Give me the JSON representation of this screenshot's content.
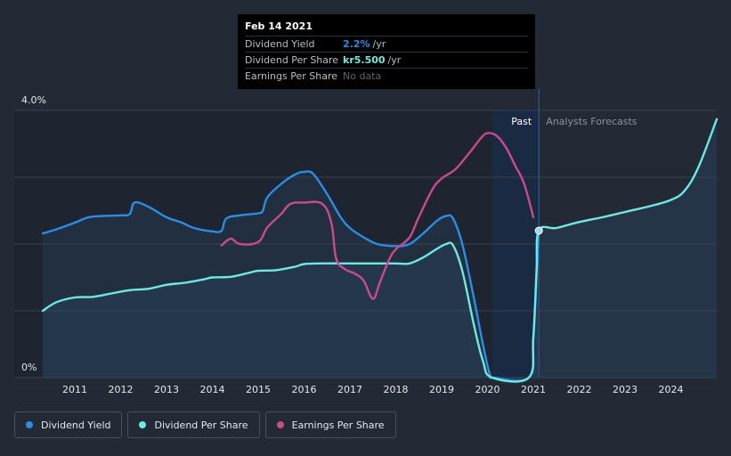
{
  "tooltip": {
    "date": "Feb 14 2021",
    "rows": [
      {
        "label": "Dividend Yield",
        "value": "2.2%",
        "unit": "/yr",
        "color": "#2b8de4"
      },
      {
        "label": "Dividend Per Share",
        "value": "kr5.500",
        "unit": "/yr",
        "color": "#6ee9e0"
      },
      {
        "label": "Earnings Per Share",
        "value": "No data",
        "unit": "",
        "color": "#5d636d"
      }
    ]
  },
  "region_labels": {
    "past": "Past",
    "forecast": "Analysts Forecasts"
  },
  "legend": [
    {
      "label": "Dividend Yield",
      "color": "#2b8de4"
    },
    {
      "label": "Dividend Per Share",
      "color": "#6ee9e0"
    },
    {
      "label": "Earnings Per Share",
      "color": "#c94a8f"
    }
  ],
  "chart_data": {
    "type": "line",
    "title": "",
    "xlabel": "",
    "ylabel": "",
    "x_ticks": [
      "2011",
      "2012",
      "2013",
      "2014",
      "2015",
      "2016",
      "2017",
      "2018",
      "2019",
      "2020",
      "2021",
      "2022",
      "2023",
      "2024"
    ],
    "y_tick_labels": [
      "4.0%",
      "0%"
    ],
    "ylim": [
      0,
      4.0
    ],
    "xlim": [
      2010.3,
      2025.0
    ],
    "grid": true,
    "legend_position": "bottom-left",
    "past_forecast_split": 2021.12,
    "series": [
      {
        "name": "Dividend Yield",
        "color": "#2b8de4",
        "fill": true,
        "points": [
          [
            2010.3,
            2.16
          ],
          [
            2010.6,
            2.22
          ],
          [
            2011.0,
            2.32
          ],
          [
            2011.3,
            2.4
          ],
          [
            2011.6,
            2.42
          ],
          [
            2012.0,
            2.43
          ],
          [
            2012.2,
            2.45
          ],
          [
            2012.3,
            2.62
          ],
          [
            2012.6,
            2.56
          ],
          [
            2013.0,
            2.4
          ],
          [
            2013.3,
            2.33
          ],
          [
            2013.6,
            2.24
          ],
          [
            2014.0,
            2.19
          ],
          [
            2014.2,
            2.2
          ],
          [
            2014.3,
            2.38
          ],
          [
            2014.6,
            2.43
          ],
          [
            2015.0,
            2.46
          ],
          [
            2015.1,
            2.5
          ],
          [
            2015.2,
            2.7
          ],
          [
            2015.5,
            2.9
          ],
          [
            2015.8,
            3.04
          ],
          [
            2016.0,
            3.08
          ],
          [
            2016.2,
            3.05
          ],
          [
            2016.5,
            2.75
          ],
          [
            2016.8,
            2.4
          ],
          [
            2017.0,
            2.24
          ],
          [
            2017.3,
            2.1
          ],
          [
            2017.6,
            2.0
          ],
          [
            2018.0,
            1.97
          ],
          [
            2018.3,
            2.0
          ],
          [
            2018.6,
            2.16
          ],
          [
            2018.9,
            2.35
          ],
          [
            2019.1,
            2.42
          ],
          [
            2019.25,
            2.38
          ],
          [
            2019.45,
            2.0
          ],
          [
            2019.7,
            1.2
          ],
          [
            2019.9,
            0.5
          ],
          [
            2020.05,
            0.05
          ],
          [
            2020.15,
            0.0
          ],
          [
            2020.9,
            0.0
          ],
          [
            2021.0,
            0.6
          ],
          [
            2021.07,
            1.5
          ],
          [
            2021.12,
            2.2
          ]
        ]
      },
      {
        "name": "Dividend Per Share",
        "color": "#6ee9e0",
        "fill": true,
        "points": [
          [
            2010.3,
            1.0
          ],
          [
            2010.6,
            1.13
          ],
          [
            2011.0,
            1.2
          ],
          [
            2011.4,
            1.21
          ],
          [
            2011.8,
            1.26
          ],
          [
            2012.2,
            1.31
          ],
          [
            2012.6,
            1.33
          ],
          [
            2013.0,
            1.39
          ],
          [
            2013.4,
            1.42
          ],
          [
            2013.8,
            1.47
          ],
          [
            2014.0,
            1.5
          ],
          [
            2014.4,
            1.51
          ],
          [
            2014.8,
            1.57
          ],
          [
            2015.0,
            1.6
          ],
          [
            2015.4,
            1.61
          ],
          [
            2015.8,
            1.66
          ],
          [
            2016.0,
            1.7
          ],
          [
            2016.4,
            1.71
          ],
          [
            2016.8,
            1.71
          ],
          [
            2017.2,
            1.71
          ],
          [
            2017.6,
            1.71
          ],
          [
            2018.0,
            1.71
          ],
          [
            2018.3,
            1.71
          ],
          [
            2018.6,
            1.8
          ],
          [
            2018.9,
            1.93
          ],
          [
            2019.1,
            2.0
          ],
          [
            2019.25,
            1.98
          ],
          [
            2019.45,
            1.6
          ],
          [
            2019.7,
            0.8
          ],
          [
            2019.9,
            0.25
          ],
          [
            2020.1,
            0.0
          ],
          [
            2020.9,
            0.0
          ],
          [
            2021.0,
            0.6
          ],
          [
            2021.07,
            1.6
          ],
          [
            2021.12,
            2.2
          ],
          [
            2021.5,
            2.24
          ],
          [
            2022.0,
            2.33
          ],
          [
            2022.5,
            2.4
          ],
          [
            2023.0,
            2.48
          ],
          [
            2023.5,
            2.56
          ],
          [
            2024.0,
            2.66
          ],
          [
            2024.3,
            2.8
          ],
          [
            2024.6,
            3.15
          ],
          [
            2025.0,
            3.87
          ]
        ]
      },
      {
        "name": "Earnings Per Share",
        "color": "#c94a8f",
        "fill": false,
        "points": [
          [
            2014.2,
            1.98
          ],
          [
            2014.4,
            2.08
          ],
          [
            2014.6,
            2.0
          ],
          [
            2015.0,
            2.03
          ],
          [
            2015.2,
            2.25
          ],
          [
            2015.5,
            2.45
          ],
          [
            2015.7,
            2.6
          ],
          [
            2016.0,
            2.62
          ],
          [
            2016.4,
            2.6
          ],
          [
            2016.6,
            2.3
          ],
          [
            2016.7,
            1.78
          ],
          [
            2016.9,
            1.62
          ],
          [
            2017.1,
            1.56
          ],
          [
            2017.3,
            1.45
          ],
          [
            2017.5,
            1.18
          ],
          [
            2017.65,
            1.42
          ],
          [
            2017.85,
            1.76
          ],
          [
            2018.0,
            1.92
          ],
          [
            2018.3,
            2.1
          ],
          [
            2018.5,
            2.4
          ],
          [
            2018.8,
            2.82
          ],
          [
            2019.0,
            2.98
          ],
          [
            2019.3,
            3.12
          ],
          [
            2019.6,
            3.36
          ],
          [
            2019.85,
            3.58
          ],
          [
            2020.0,
            3.66
          ],
          [
            2020.2,
            3.62
          ],
          [
            2020.4,
            3.45
          ],
          [
            2020.6,
            3.18
          ],
          [
            2020.8,
            2.9
          ],
          [
            2021.0,
            2.4
          ]
        ]
      }
    ]
  }
}
